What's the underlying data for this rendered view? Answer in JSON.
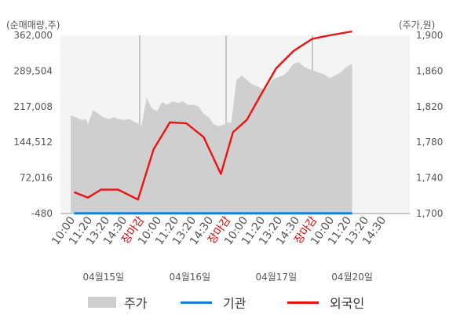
{
  "chart_data": {
    "type": "area",
    "left_axis_unit": "(순매매량,주)",
    "right_axis_unit": "(주가,원)",
    "left_ticks": [
      "362,000",
      "289,504",
      "217,008",
      "144,512",
      "72,016",
      "-480"
    ],
    "left_tick_values": [
      362000,
      289504,
      217008,
      144512,
      72016,
      -480
    ],
    "left_range": [
      -480,
      362000
    ],
    "right_ticks": [
      "1,900",
      "1,860",
      "1,820",
      "1,780",
      "1,740",
      "1,700"
    ],
    "right_tick_values": [
      1900,
      1860,
      1820,
      1780,
      1740,
      1700
    ],
    "right_range": [
      1700,
      1900
    ],
    "x_labels": [
      {
        "label": "10:00",
        "slot": 0,
        "red": false
      },
      {
        "label": "11:20",
        "slot": 1,
        "red": false
      },
      {
        "label": "13:20",
        "slot": 2,
        "red": false
      },
      {
        "label": "14:30",
        "slot": 3,
        "red": false
      },
      {
        "label": "장마감",
        "slot": 4,
        "red": true
      },
      {
        "label": "10:00",
        "slot": 5,
        "red": false
      },
      {
        "label": "11:20",
        "slot": 6,
        "red": false
      },
      {
        "label": "13:20",
        "slot": 7,
        "red": false
      },
      {
        "label": "14:30",
        "slot": 8,
        "red": false
      },
      {
        "label": "장마감",
        "slot": 9,
        "red": true
      },
      {
        "label": "10:00",
        "slot": 10,
        "red": false
      },
      {
        "label": "11:20",
        "slot": 11,
        "red": false
      },
      {
        "label": "13:20",
        "slot": 12,
        "red": false
      },
      {
        "label": "14:30",
        "slot": 13,
        "red": false
      },
      {
        "label": "장마감",
        "slot": 14,
        "red": true
      },
      {
        "label": "10:00",
        "slot": 15,
        "red": false
      },
      {
        "label": "11:20",
        "slot": 16,
        "red": false
      },
      {
        "label": "13:20",
        "slot": 17,
        "red": false
      },
      {
        "label": "14:30",
        "slot": 18,
        "red": false
      }
    ],
    "dates": [
      {
        "label": "04월15일",
        "slot": 1.9
      },
      {
        "label": "04월16일",
        "slot": 6.9
      },
      {
        "label": "04월17일",
        "slot": 11.9
      },
      {
        "label": "04월20일",
        "slot": 16.3
      }
    ],
    "series": [
      {
        "name": "주가",
        "axis": "right",
        "color": "#cfcfcf",
        "x": [
          0,
          0.3,
          0.6,
          0.9,
          1.0,
          1.3,
          1.6,
          1.9,
          2.2,
          2.5,
          2.8,
          3.1,
          3.4,
          3.7,
          4.0,
          4.1,
          4.4,
          4.7,
          5.0,
          5.3,
          5.6,
          5.9,
          6.2,
          6.5,
          6.8,
          7.1,
          7.4,
          7.7,
          8.0,
          8.3,
          8.6,
          8.9,
          9.1,
          9.3,
          9.6,
          9.9,
          10.2,
          10.5,
          10.8,
          11.1,
          11.4,
          11.7,
          12.0,
          12.3,
          12.6,
          12.9,
          13.2,
          13.5,
          13.8,
          14.1,
          14.4,
          14.7,
          15.0,
          15.3,
          15.6,
          16.0,
          16.3
        ],
        "y": [
          1810,
          1808,
          1805,
          1806,
          1800,
          1816,
          1812,
          1808,
          1806,
          1808,
          1806,
          1805,
          1806,
          1803,
          1800,
          1798,
          1830,
          1818,
          1815,
          1825,
          1822,
          1826,
          1824,
          1826,
          1822,
          1822,
          1820,
          1812,
          1808,
          1800,
          1798,
          1800,
          1802,
          1802,
          1850,
          1855,
          1850,
          1845,
          1843,
          1840,
          1842,
          1850,
          1853,
          1855,
          1860,
          1868,
          1870,
          1865,
          1862,
          1860,
          1858,
          1856,
          1852,
          1855,
          1858,
          1865,
          1868
        ]
      },
      {
        "name": "기관",
        "axis": "left",
        "color": "#1a7fd1",
        "x": [
          0.2,
          16.3
        ],
        "y": [
          0,
          0
        ]
      },
      {
        "name": "외국인",
        "axis": "left",
        "color": "#ee1111",
        "x": [
          0.2,
          1.0,
          1.75,
          2.75,
          3.9,
          4.8,
          5.75,
          6.7,
          7.7,
          8.7,
          9.4,
          10.2,
          11.0,
          11.9,
          12.9,
          14.0,
          15.0,
          16.3
        ],
        "y": [
          43000,
          32000,
          48000,
          48000,
          28000,
          130000,
          185000,
          183000,
          155000,
          80000,
          165000,
          190000,
          240000,
          295000,
          330000,
          355000,
          362000,
          370000
        ]
      }
    ]
  },
  "legend": [
    {
      "label": "주가",
      "kind": "area",
      "color": "#cfcfcf"
    },
    {
      "label": "기관",
      "kind": "line",
      "color": "#1a7fd1"
    },
    {
      "label": "외국인",
      "kind": "line",
      "color": "#ee1111"
    }
  ]
}
